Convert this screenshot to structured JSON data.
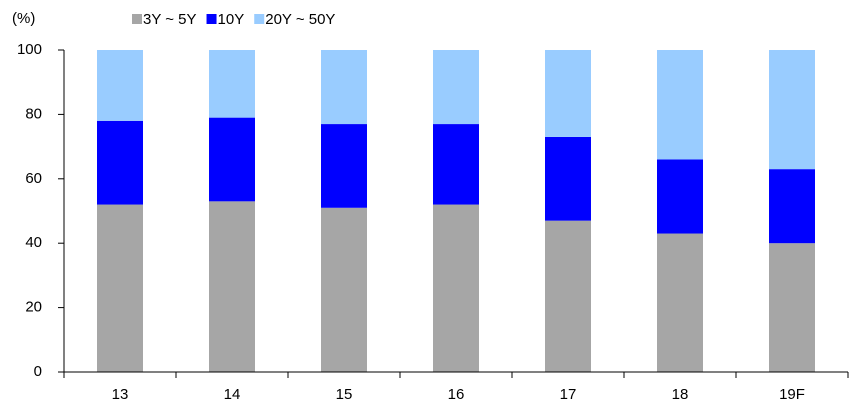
{
  "chart_data": {
    "type": "stacked_bar",
    "ylabel": "(%)",
    "categories": [
      "13",
      "14",
      "15",
      "16",
      "17",
      "18",
      "19F"
    ],
    "series": [
      {
        "name": "3Y ~ 5Y",
        "color": "#a6a6a6",
        "values": [
          52,
          53,
          51,
          52,
          47,
          43,
          40
        ]
      },
      {
        "name": "10Y",
        "color": "#0000ff",
        "values": [
          26,
          26,
          26,
          25,
          26,
          23,
          23
        ]
      },
      {
        "name": "20Y ~ 50Y",
        "color": "#99ccff",
        "values": [
          22,
          21,
          23,
          23,
          27,
          34,
          37
        ]
      }
    ],
    "ylim": [
      0,
      100
    ],
    "yticks": [
      0,
      20,
      40,
      60,
      80,
      100
    ],
    "grid": false
  }
}
